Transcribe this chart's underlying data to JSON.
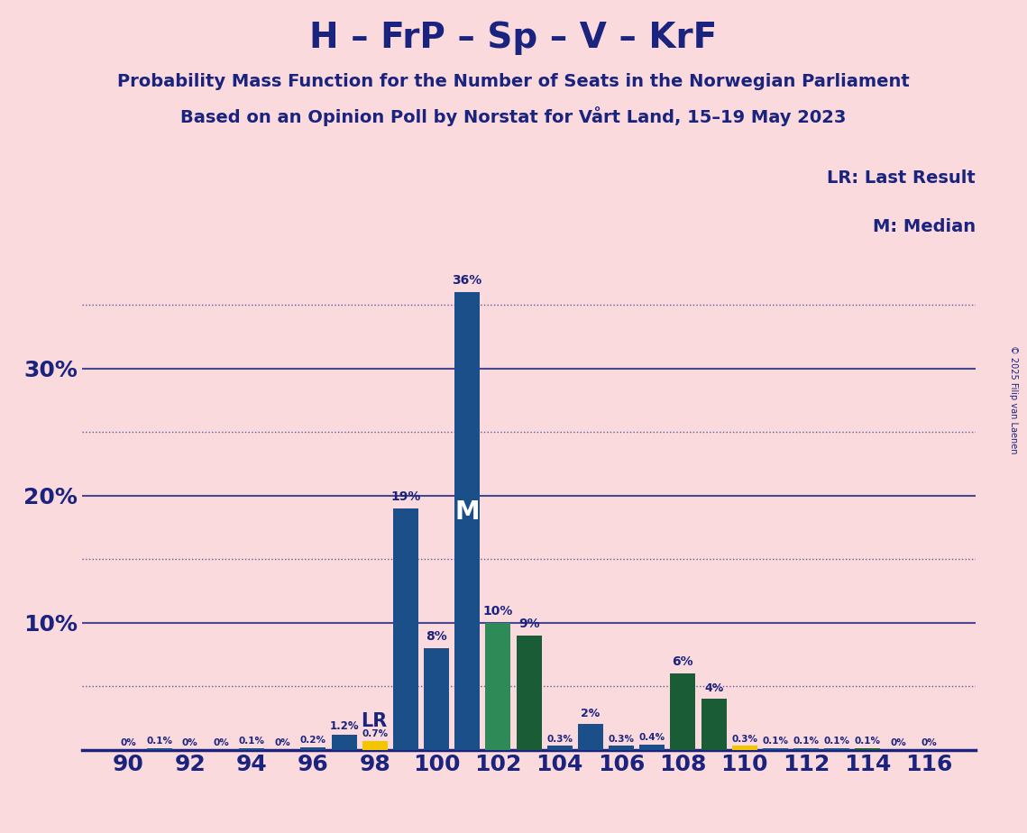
{
  "title": "H – FrP – Sp – V – KrF",
  "subtitle1": "Probability Mass Function for the Number of Seats in the Norwegian Parliament",
  "subtitle2": "Based on an Opinion Poll by Norstat for Vårt Land, 15–19 May 2023",
  "copyright": "© 2025 Filip van Laenen",
  "seats": [
    90,
    91,
    92,
    93,
    94,
    95,
    96,
    97,
    98,
    99,
    100,
    101,
    102,
    103,
    104,
    105,
    106,
    107,
    108,
    109,
    110,
    111,
    112,
    113,
    114,
    115,
    116
  ],
  "values": [
    0.0,
    0.1,
    0.0,
    0.0,
    0.1,
    0.0,
    0.2,
    1.2,
    0.7,
    19.0,
    8.0,
    36.0,
    10.0,
    9.0,
    0.3,
    2.0,
    0.3,
    0.4,
    6.0,
    4.0,
    0.3,
    0.1,
    0.1,
    0.1,
    0.1,
    0.0,
    0.0
  ],
  "bar_colors": [
    "#1b4f8a",
    "#1b4f8a",
    "#1b4f8a",
    "#1b4f8a",
    "#1b4f8a",
    "#1b4f8a",
    "#1b4f8a",
    "#1b4f8a",
    "#f5c400",
    "#1b4f8a",
    "#1b4f8a",
    "#1b4f8a",
    "#2e8b57",
    "#1a5c35",
    "#1b4f8a",
    "#1b4f8a",
    "#1b4f8a",
    "#1b4f8a",
    "#1a5c35",
    "#1a5c35",
    "#f5c400",
    "#1b4f8a",
    "#1b4f8a",
    "#1b4f8a",
    "#1a5c35",
    "#1b4f8a",
    "#1b4f8a"
  ],
  "xtick_seats": [
    90,
    92,
    94,
    96,
    98,
    100,
    102,
    104,
    106,
    108,
    110,
    112,
    114,
    116
  ],
  "ylim_max": 38,
  "background_color": "#fadadd",
  "title_color": "#1a237e",
  "lr_seat_index": 7,
  "median_seat_index": 11,
  "lr_label": "LR",
  "median_label": "M"
}
